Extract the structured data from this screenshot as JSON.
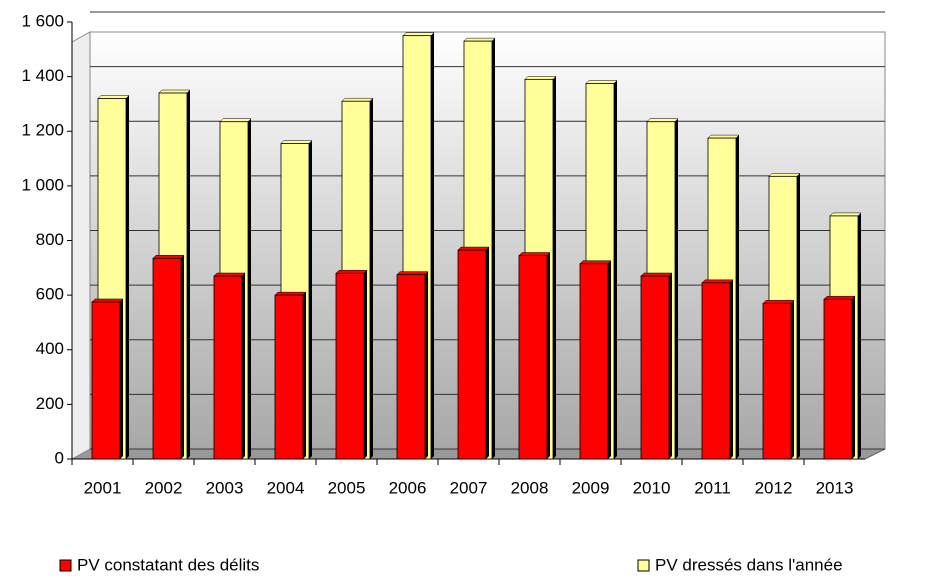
{
  "chart_data": {
    "type": "bar",
    "categories": [
      "2001",
      "2002",
      "2003",
      "2004",
      "2005",
      "2006",
      "2007",
      "2008",
      "2009",
      "2010",
      "2011",
      "2012",
      "2013"
    ],
    "series": [
      {
        "name": "PV constatant des délits",
        "color": "#ff0000",
        "values": [
          575,
          735,
          670,
          600,
          680,
          675,
          765,
          745,
          715,
          670,
          645,
          570,
          585
        ]
      },
      {
        "name": "PV dressés dans l'année",
        "color": "#ffff99",
        "values": [
          1320,
          1340,
          1235,
          1155,
          1310,
          1550,
          1530,
          1390,
          1375,
          1235,
          1175,
          1035,
          890
        ]
      }
    ],
    "ylim": [
      0,
      1600
    ],
    "yticks": [
      0,
      200,
      400,
      600,
      800,
      {
        "value": 1000,
        "label": "1 000"
      },
      {
        "value": 1200,
        "label": "1 200"
      },
      {
        "value": 1400,
        "label": "1 400"
      },
      {
        "value": 1600,
        "label": "1 600"
      }
    ],
    "grid": true
  }
}
